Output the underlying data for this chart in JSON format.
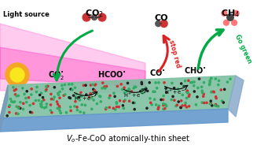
{
  "title": "V_o-Fe-CoO atomically-thin sheet",
  "light_source_text": "Light source",
  "bg_color": "#ffffff",
  "arrow_green": "#00aa44",
  "arrow_red": "#dd2222",
  "stop_red_text": "stop red",
  "go_green_text": "Go green",
  "sun_outer": "#f5a623",
  "sun_inner": "#f8e71c",
  "laser_color": "#ff44bb",
  "sheet_green": "#7bbf9f",
  "sheet_blue": "#6699cc",
  "dot_red": "#cc3333",
  "dot_green": "#33aa66",
  "dot_black": "#222222",
  "bond_color": "#333333"
}
